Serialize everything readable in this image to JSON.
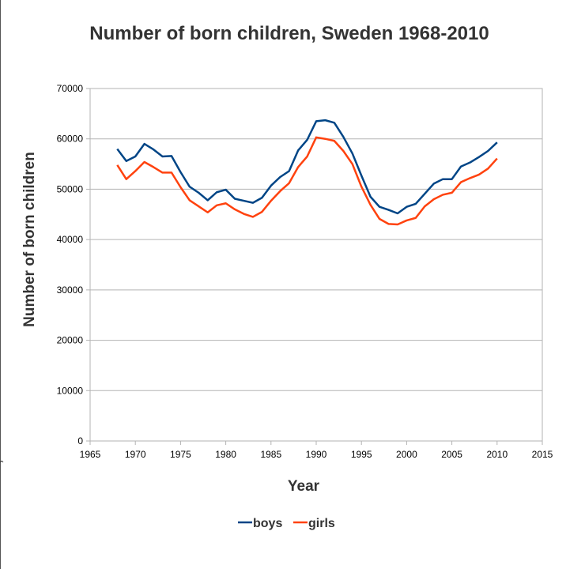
{
  "chart_data": {
    "type": "line",
    "title": "Number of born children, Sweden 1968-2010",
    "xlabel": "Year",
    "ylabel": "Number of born children",
    "xlim": [
      1965,
      2015
    ],
    "ylim": [
      0,
      70000
    ],
    "xticks": [
      1965,
      1970,
      1975,
      1980,
      1985,
      1990,
      1995,
      2000,
      2005,
      2010,
      2015
    ],
    "yticks": [
      0,
      10000,
      20000,
      30000,
      40000,
      50000,
      60000,
      70000
    ],
    "grid": "horizontal",
    "legend_position": "bottom",
    "x": [
      1968,
      1969,
      1970,
      1971,
      1972,
      1973,
      1974,
      1975,
      1976,
      1977,
      1978,
      1979,
      1980,
      1981,
      1982,
      1983,
      1984,
      1985,
      1986,
      1987,
      1988,
      1989,
      1990,
      1991,
      1992,
      1993,
      1994,
      1995,
      1996,
      1997,
      1998,
      1999,
      2000,
      2001,
      2002,
      2003,
      2004,
      2005,
      2006,
      2007,
      2008,
      2009,
      2010
    ],
    "series": [
      {
        "name": "boys",
        "color": "#004586",
        "values": [
          58000,
          55600,
          56500,
          59000,
          57900,
          56500,
          56600,
          53400,
          50500,
          49300,
          47800,
          49400,
          49900,
          48100,
          47700,
          47300,
          48300,
          50700,
          52400,
          53600,
          57700,
          59800,
          63500,
          63700,
          63200,
          60400,
          57100,
          52700,
          48500,
          46500,
          45900,
          45200,
          46500,
          47100,
          49100,
          51100,
          52000,
          52000,
          54500,
          55300,
          56400,
          57600,
          59300
        ]
      },
      {
        "name": "girls",
        "color": "#ff420e",
        "values": [
          54800,
          52000,
          53600,
          55400,
          54400,
          53300,
          53300,
          50400,
          47800,
          46600,
          45400,
          46800,
          47200,
          46000,
          45100,
          44500,
          45500,
          47700,
          49600,
          51200,
          54400,
          56500,
          60300,
          60000,
          59600,
          57600,
          55000,
          50500,
          46900,
          44100,
          43100,
          43000,
          43800,
          44300,
          46600,
          48000,
          48900,
          49300,
          51400,
          52200,
          52900,
          54100,
          56100
        ]
      }
    ]
  }
}
